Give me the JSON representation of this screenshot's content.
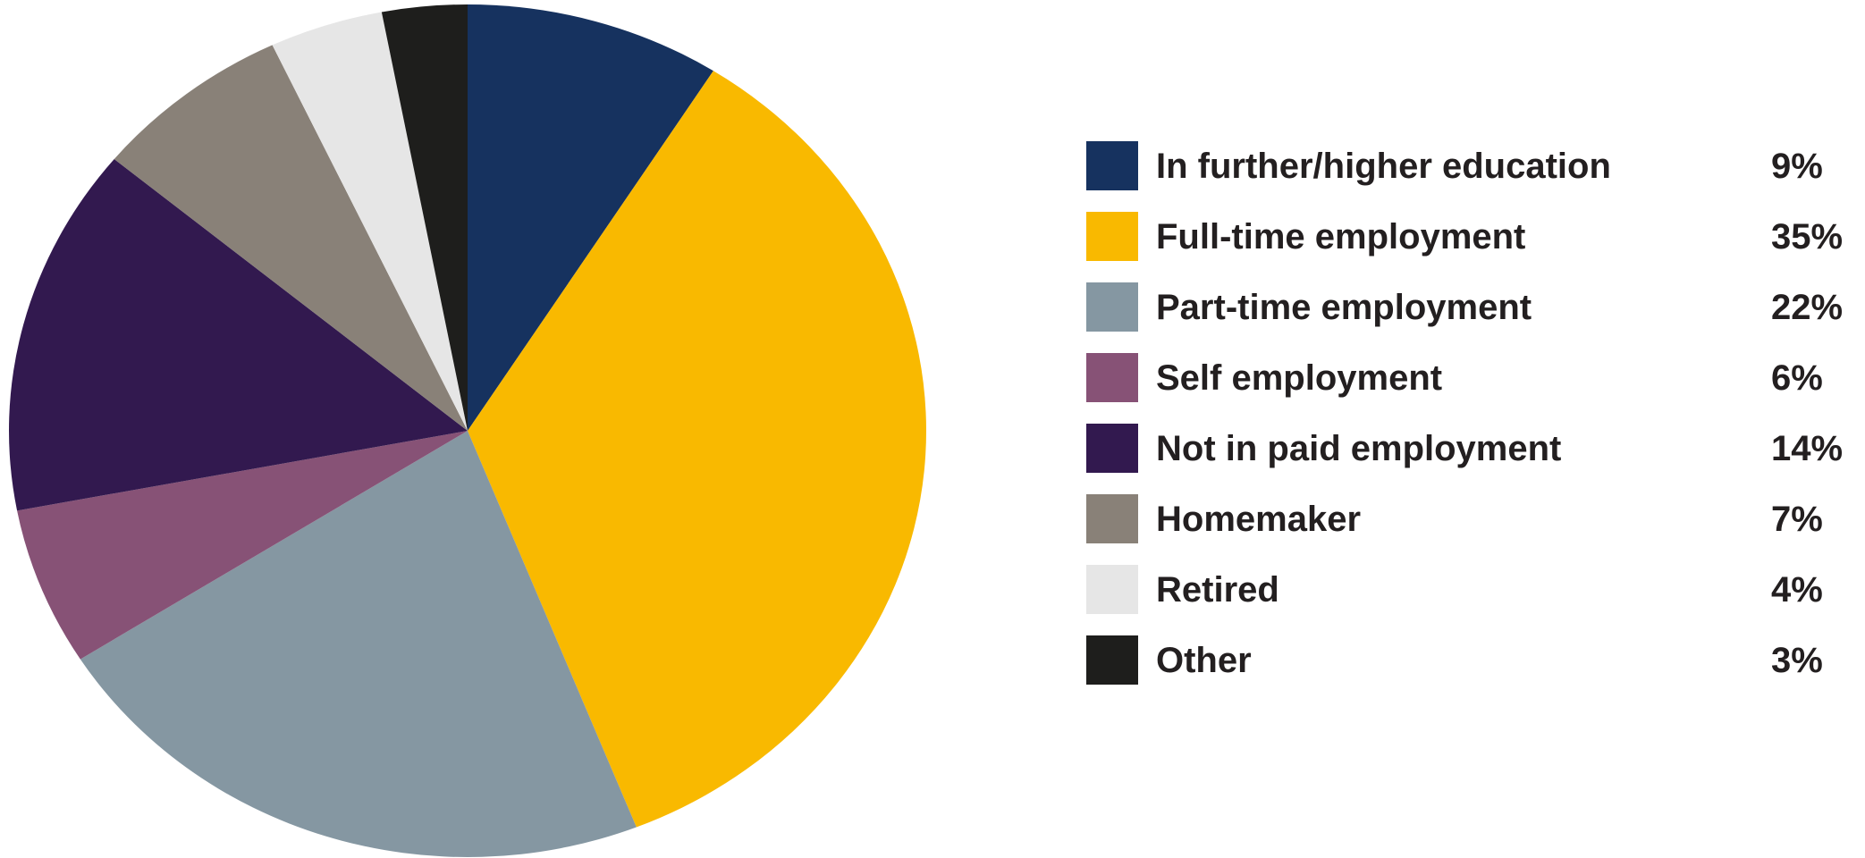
{
  "chart_data": {
    "type": "pie",
    "title": "",
    "start_angle_deg": 0,
    "direction": "clockwise",
    "categories": [
      "In further/higher education",
      "Full-time employment",
      "Part-time employment",
      "Self employment",
      "Not in paid employment",
      "Homemaker",
      "Retired",
      "Other"
    ],
    "values": [
      9,
      35,
      22,
      6,
      14,
      7,
      4,
      3
    ],
    "value_labels": [
      "9%",
      "35%",
      "22%",
      "6%",
      "14%",
      "7%",
      "4%",
      "3%"
    ],
    "colors": [
      "#16325f",
      "#f9b900",
      "#8597a2",
      "#875276",
      "#32194f",
      "#898178",
      "#e6e6e6",
      "#1e1e1c"
    ],
    "legend_position": "right"
  }
}
